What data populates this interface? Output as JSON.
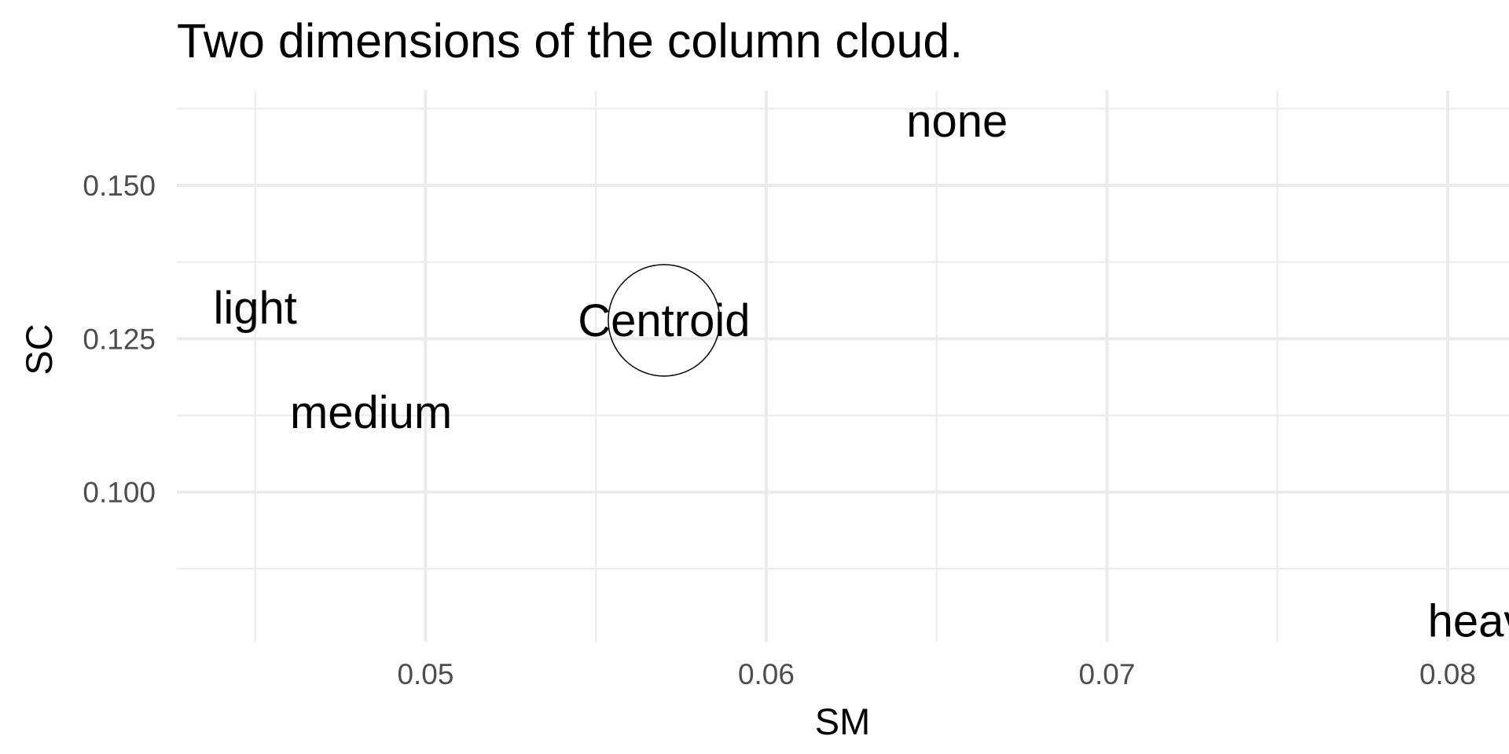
{
  "chart_data": {
    "type": "scatter",
    "title": "Two dimensions of the column cloud.",
    "xlabel": "SM",
    "ylabel": "SC",
    "xlim": [
      0.0427,
      0.0818
    ],
    "ylim": [
      0.0756,
      0.1655
    ],
    "x_ticks": [
      0.05,
      0.06,
      0.07,
      0.08
    ],
    "x_tick_labels": [
      "0.05",
      "0.06",
      "0.07",
      "0.08"
    ],
    "y_ticks": [
      0.1,
      0.125,
      0.15
    ],
    "y_tick_labels": [
      "0.100",
      "0.125",
      "0.150"
    ],
    "grid": true,
    "legend": "none",
    "points": [
      {
        "label": "none",
        "x": 0.0656,
        "y": 0.1605
      },
      {
        "label": "light",
        "x": 0.045,
        "y": 0.13
      },
      {
        "label": "medium",
        "x": 0.0484,
        "y": 0.113
      },
      {
        "label": "heavy",
        "x": 0.0812,
        "y": 0.079
      }
    ],
    "centroid": {
      "label": "Centroid",
      "x": 0.057,
      "y": 0.128
    }
  }
}
